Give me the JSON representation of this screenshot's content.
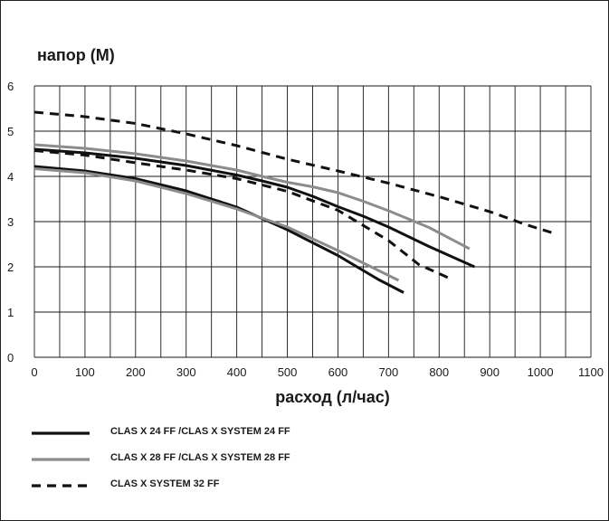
{
  "chart_data": {
    "type": "line",
    "ylabel": "напор (M)",
    "xlabel": "расход (л/час)",
    "xlim": [
      0,
      1100
    ],
    "ylim": [
      0,
      6
    ],
    "xticks": [
      "0",
      "100",
      "200",
      "300",
      "400",
      "500",
      "600",
      "700",
      "800",
      "900",
      "1000",
      "1100"
    ],
    "yticks": [
      "0",
      "1",
      "2",
      "3",
      "4",
      "5",
      "6"
    ],
    "grid": true,
    "legend_position": "bottom",
    "series": [
      {
        "name": "CLAS X 24 FF /CLAS X SYSTEM 24 FF",
        "color": "#111111",
        "dash": "solid",
        "curves": [
          [
            [
              0,
              4.22
            ],
            [
              100,
              4.12
            ],
            [
              200,
              3.95
            ],
            [
              300,
              3.68
            ],
            [
              400,
              3.32
            ],
            [
              500,
              2.82
            ],
            [
              600,
              2.25
            ],
            [
              680,
              1.72
            ],
            [
              730,
              1.43
            ]
          ],
          [
            [
              0,
              4.6
            ],
            [
              100,
              4.52
            ],
            [
              200,
              4.4
            ],
            [
              300,
              4.24
            ],
            [
              400,
              4.03
            ],
            [
              450,
              3.9
            ],
            [
              500,
              3.76
            ],
            [
              550,
              3.56
            ],
            [
              600,
              3.33
            ],
            [
              650,
              3.12
            ],
            [
              700,
              2.88
            ],
            [
              780,
              2.45
            ],
            [
              870,
              2.0
            ]
          ]
        ]
      },
      {
        "name": "CLAS X 28 FF /CLAS X SYSTEM 28 FF",
        "color": "#8c8c8c",
        "dash": "solid",
        "curves": [
          [
            [
              0,
              4.17
            ],
            [
              100,
              4.08
            ],
            [
              200,
              3.9
            ],
            [
              300,
              3.62
            ],
            [
              400,
              3.28
            ],
            [
              500,
              2.88
            ],
            [
              600,
              2.36
            ],
            [
              680,
              1.92
            ],
            [
              720,
              1.7
            ]
          ],
          [
            [
              0,
              4.7
            ],
            [
              100,
              4.62
            ],
            [
              200,
              4.5
            ],
            [
              300,
              4.34
            ],
            [
              400,
              4.14
            ],
            [
              450,
              4.0
            ],
            [
              500,
              3.87
            ],
            [
              550,
              3.77
            ],
            [
              600,
              3.64
            ],
            [
              650,
              3.45
            ],
            [
              700,
              3.24
            ],
            [
              780,
              2.87
            ],
            [
              860,
              2.4
            ]
          ]
        ]
      },
      {
        "name": "CLAS X SYSTEM 32 FF",
        "color": "#111111",
        "dash": "dashed",
        "curves": [
          [
            [
              0,
              5.42
            ],
            [
              100,
              5.32
            ],
            [
              200,
              5.17
            ],
            [
              300,
              4.94
            ],
            [
              400,
              4.68
            ],
            [
              500,
              4.38
            ],
            [
              600,
              4.12
            ],
            [
              700,
              3.85
            ],
            [
              800,
              3.55
            ],
            [
              900,
              3.22
            ],
            [
              970,
              2.94
            ],
            [
              1030,
              2.73
            ]
          ],
          [
            [
              0,
              4.57
            ],
            [
              100,
              4.47
            ],
            [
              200,
              4.3
            ],
            [
              300,
              4.14
            ],
            [
              400,
              3.95
            ],
            [
              500,
              3.67
            ],
            [
              600,
              3.25
            ],
            [
              700,
              2.58
            ],
            [
              760,
              2.05
            ],
            [
              820,
              1.75
            ]
          ]
        ]
      }
    ]
  }
}
